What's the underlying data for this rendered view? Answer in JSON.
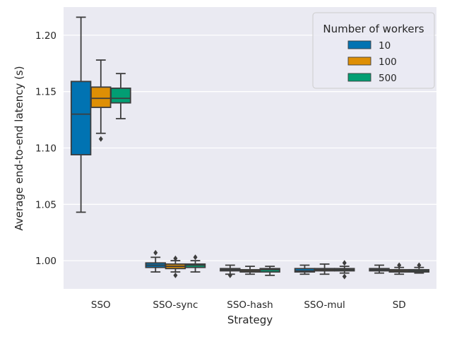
{
  "chart_data": {
    "type": "boxplot",
    "xlabel": "Strategy",
    "ylabel": "Average end-to-end latency (s)",
    "ylim": [
      0.975,
      1.225
    ],
    "yticks": [
      1.0,
      1.05,
      1.1,
      1.15,
      1.2
    ],
    "ytick_labels": [
      "1.00",
      "1.05",
      "1.10",
      "1.15",
      "1.20"
    ],
    "grid": true,
    "categories": [
      "SSO",
      "SSO-sync",
      "SSO-hash",
      "SSO-mul",
      "SD"
    ],
    "legend": {
      "title": "Number of workers",
      "placement": "top-right"
    },
    "series": [
      {
        "name": "10",
        "color": "#0173b2",
        "boxes": [
          {
            "whislo": 1.043,
            "q1": 1.094,
            "med": 1.13,
            "q3": 1.159,
            "whishi": 1.216,
            "fliers": []
          },
          {
            "whislo": 0.99,
            "q1": 0.994,
            "med": 0.996,
            "q3": 0.998,
            "whishi": 1.003,
            "fliers": [
              1.007
            ]
          },
          {
            "whislo": 0.988,
            "q1": 0.991,
            "med": 0.992,
            "q3": 0.993,
            "whishi": 0.996,
            "fliers": [
              0.987
            ]
          },
          {
            "whislo": 0.988,
            "q1": 0.99,
            "med": 0.991,
            "q3": 0.993,
            "whishi": 0.996,
            "fliers": []
          },
          {
            "whislo": 0.989,
            "q1": 0.991,
            "med": 0.992,
            "q3": 0.993,
            "whishi": 0.996,
            "fliers": []
          }
        ]
      },
      {
        "name": "100",
        "color": "#de8f05",
        "boxes": [
          {
            "whislo": 1.113,
            "q1": 1.136,
            "med": 1.144,
            "q3": 1.154,
            "whishi": 1.178,
            "fliers": [
              1.108
            ]
          },
          {
            "whislo": 0.99,
            "q1": 0.993,
            "med": 0.995,
            "q3": 0.997,
            "whishi": 1.0,
            "fliers": [
              1.002,
              0.987
            ]
          },
          {
            "whislo": 0.988,
            "q1": 0.99,
            "med": 0.991,
            "q3": 0.992,
            "whishi": 0.995,
            "fliers": []
          },
          {
            "whislo": 0.988,
            "q1": 0.991,
            "med": 0.992,
            "q3": 0.993,
            "whishi": 0.997,
            "fliers": []
          },
          {
            "whislo": 0.988,
            "q1": 0.99,
            "med": 0.991,
            "q3": 0.992,
            "whishi": 0.994,
            "fliers": [
              0.996
            ]
          }
        ]
      },
      {
        "name": "500",
        "color": "#029e73",
        "boxes": [
          {
            "whislo": 1.126,
            "q1": 1.14,
            "med": 1.144,
            "q3": 1.153,
            "whishi": 1.166,
            "fliers": []
          },
          {
            "whislo": 0.99,
            "q1": 0.994,
            "med": 0.996,
            "q3": 0.997,
            "whishi": 1.0,
            "fliers": [
              1.003
            ]
          },
          {
            "whislo": 0.987,
            "q1": 0.99,
            "med": 0.992,
            "q3": 0.993,
            "whishi": 0.995,
            "fliers": []
          },
          {
            "whislo": 0.989,
            "q1": 0.991,
            "med": 0.992,
            "q3": 0.993,
            "whishi": 0.995,
            "fliers": [
              0.998,
              0.986
            ]
          },
          {
            "whislo": 0.989,
            "q1": 0.99,
            "med": 0.991,
            "q3": 0.992,
            "whishi": 0.994,
            "fliers": [
              0.996
            ]
          }
        ]
      }
    ]
  }
}
